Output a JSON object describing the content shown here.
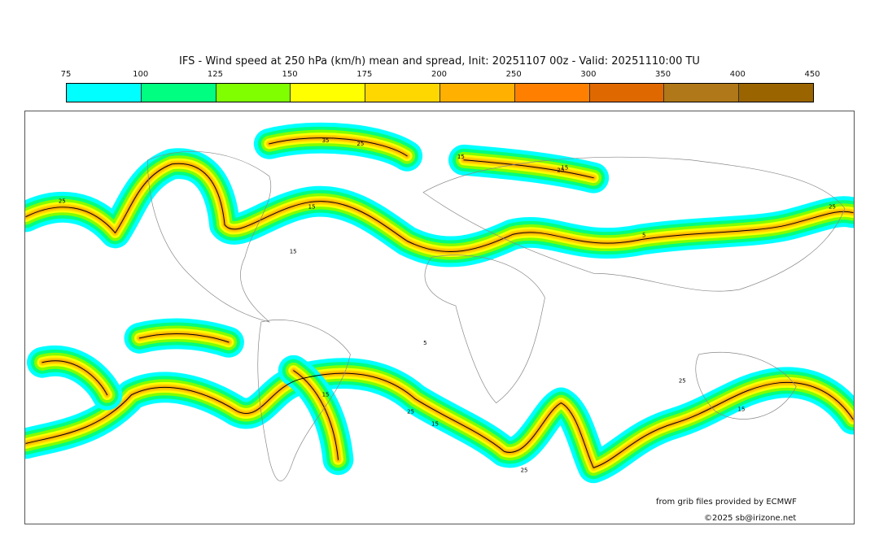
{
  "title": "IFS - Wind speed at 250 hPa (km/h) mean and spread, Init: 20251107 00z - Valid: 20251110:00 TU",
  "colorbar": {
    "ticks": [
      "75",
      "100",
      "125",
      "150",
      "175",
      "200",
      "250",
      "300",
      "350",
      "400",
      "450"
    ],
    "colors": [
      "#00ffff",
      "#00ff80",
      "#80ff00",
      "#ffff00",
      "#ffd700",
      "#ffb000",
      "#ff8000",
      "#e06800",
      "#b07818",
      "#9a6400"
    ]
  },
  "contour_labels": [
    "35",
    "25",
    "15",
    "25",
    "15",
    "25",
    "15",
    "5",
    "15",
    "25",
    "15",
    "25",
    "15",
    "25",
    "15",
    "25",
    "5"
  ],
  "credits": {
    "source": "from grib files provided by ECMWF",
    "copyright": "©2025 sb@irizone.net"
  }
}
